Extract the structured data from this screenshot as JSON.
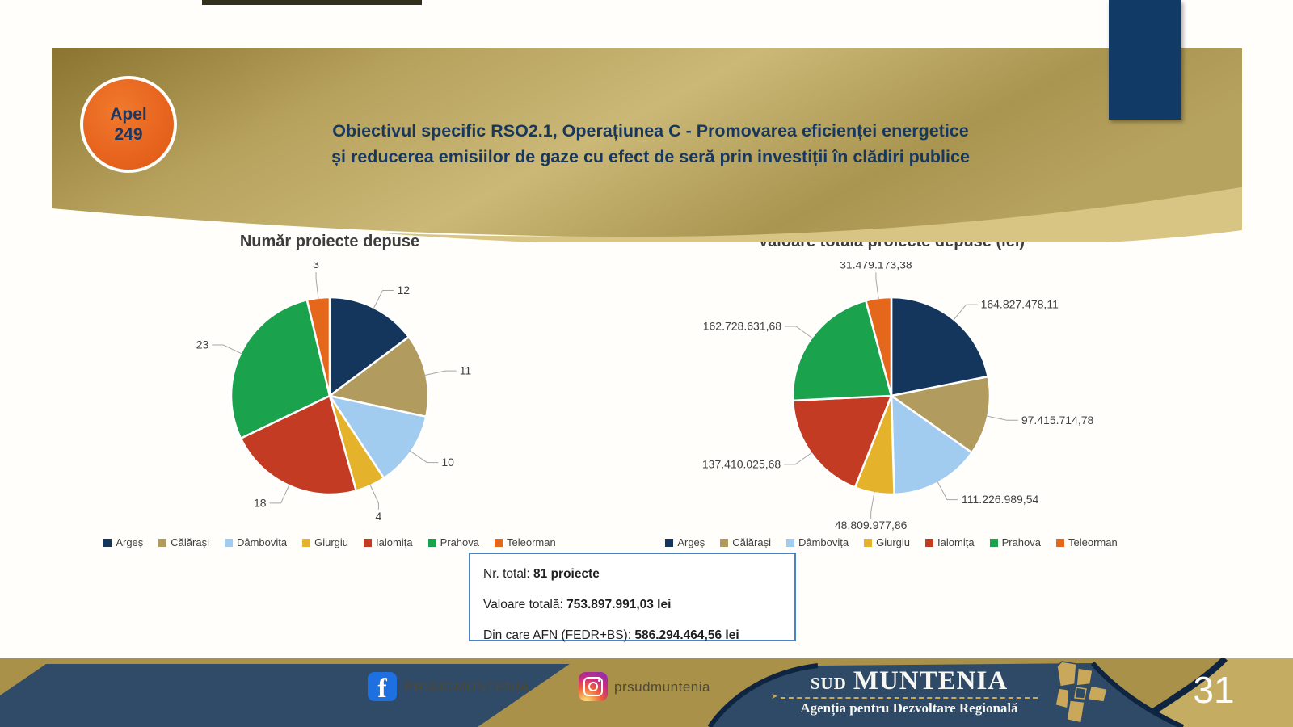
{
  "header": {
    "badge_line1": "Apel",
    "badge_line2": "249",
    "title_line1": "Obiectivul specific RSO2.1, Operațiunea C - Promovarea eficienței energetice",
    "title_line2": "și reducerea emisiilor de gaze cu efect de seră prin investiții în clădiri publice"
  },
  "summary": {
    "rows": [
      {
        "label": "Nr. total: ",
        "value": "81 proiecte"
      },
      {
        "label": "Valoare totală: ",
        "value": "753.897.991,03 lei"
      },
      {
        "label": "Din care AFN (FEDR+BS): ",
        "value": "586.294.464,56 lei"
      }
    ]
  },
  "footer": {
    "facebook_label": "PRSUDMUNTENIA",
    "instagram_label": "prsudmuntenia",
    "logo_prefix": "SUD",
    "logo_name": "MUNTENIA",
    "logo_subtitle": "Agenția pentru Dezvoltare Regională",
    "page_number": "31"
  },
  "colors": {
    "accent_orange": "#E8651F",
    "title_navy": "#17375D",
    "banner_gold_dark": "#8A742F",
    "banner_gold_light": "#CBB877",
    "footer_gold": "#A9914A",
    "footer_navy": "#2E4A67",
    "footer_navy_dark": "#0E2440",
    "summary_border_blue": "#4A84C0",
    "leader_line_gray": "#A6A6A6"
  },
  "chart_data": [
    {
      "type": "pie",
      "title": "Număr proiecte depuse",
      "categories": [
        "Argeș",
        "Călărași",
        "Dâmbovița",
        "Giurgiu",
        "Ialomița",
        "Prahova",
        "Teleorman"
      ],
      "values": [
        12,
        11,
        10,
        4,
        18,
        23,
        3
      ],
      "labels": [
        "12",
        "11",
        "10",
        "4",
        "18",
        "23",
        "3"
      ],
      "colors": [
        "#15365C",
        "#B29B5F",
        "#A2CBF0",
        "#E4B32B",
        "#C23B22",
        "#1AA24D",
        "#E4671C"
      ],
      "total": 81,
      "start_angle": 0,
      "direction": "clockwise",
      "legend_position": "bottom"
    },
    {
      "type": "pie",
      "title": "Valoare totală proiecte depuse (lei)",
      "categories": [
        "Argeș",
        "Călărași",
        "Dâmbovița",
        "Giurgiu",
        "Ialomița",
        "Prahova",
        "Teleorman"
      ],
      "values": [
        164827478.11,
        97415714.78,
        111226989.54,
        48809977.86,
        137410025.68,
        162728631.68,
        31479173.38
      ],
      "labels": [
        "164.827.478,11",
        "97.415.714,78",
        "111.226.989,54",
        "48.809.977,86",
        "137.410.025,68",
        "162.728.631,68",
        "31.479.173,38"
      ],
      "colors": [
        "#15365C",
        "#B29B5F",
        "#A2CBF0",
        "#E4B32B",
        "#C23B22",
        "#1AA24D",
        "#E4671C"
      ],
      "total": 753897991.03,
      "start_angle": 0,
      "direction": "clockwise",
      "legend_position": "bottom"
    }
  ]
}
